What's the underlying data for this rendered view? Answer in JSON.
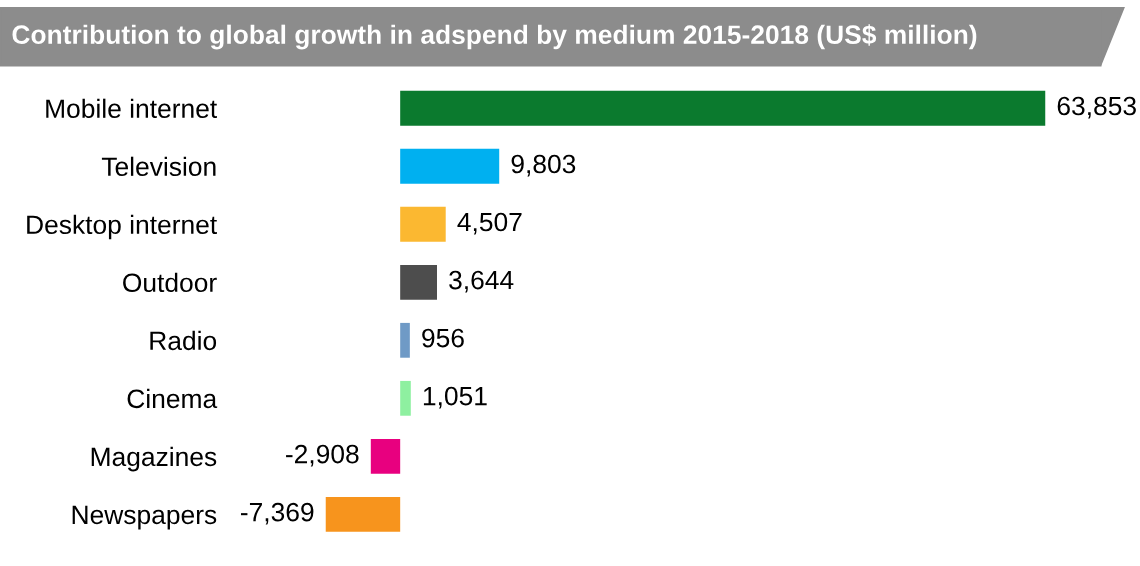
{
  "chart_data": {
    "type": "bar",
    "orientation": "horizontal",
    "title": "Contribution to global growth in adspend by medium 2015-2018 (US$ million)",
    "categories": [
      "Mobile internet",
      "Television",
      "Desktop internet",
      "Outdoor",
      "Radio",
      "Cinema",
      "Magazines",
      "Newspapers"
    ],
    "values": [
      63853,
      9803,
      4507,
      3644,
      956,
      1051,
      -2908,
      -7369
    ],
    "colors": [
      "#0b7a2e",
      "#00b0f0",
      "#fbb831",
      "#4d4d4d",
      "#6f9ac6",
      "#8ef0a0",
      "#e8007f",
      "#f7941d"
    ],
    "value_labels": [
      "63,853",
      "9,803",
      "4,507",
      "3,644",
      "956",
      "1,051",
      "-2,908",
      "-7,369"
    ]
  }
}
